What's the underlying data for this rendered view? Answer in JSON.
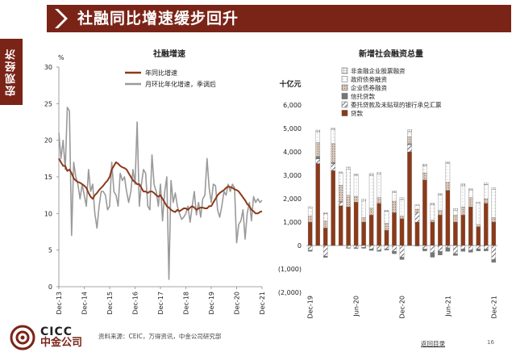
{
  "header": {
    "title": "社融同比增速缓步回升"
  },
  "side_tab": {
    "label": "宏观经济"
  },
  "colors": {
    "brand": "#7a2418",
    "series_growth": "#8b3a1a",
    "series_mom": "#9a9a9a"
  },
  "chart_data": [
    {
      "type": "line",
      "title": "社融增速",
      "ylabel": "%",
      "ylim": [
        0,
        30
      ],
      "yticks": [
        "0",
        "5",
        "10",
        "15",
        "20",
        "25",
        "30"
      ],
      "xticks": [
        "Dec-13",
        "Dec-14",
        "Dec-15",
        "Dec-16",
        "Dec-17",
        "Dec-18",
        "Dec-19",
        "Dec-20",
        "Dec-21"
      ],
      "x_index_range": [
        0,
        96
      ],
      "series": [
        {
          "name": "年同比增速",
          "color": "#8b3a1a",
          "values": [
            17.5,
            17,
            16.5,
            16.5,
            15.8,
            16,
            15.5,
            14.8,
            14.5,
            14.3,
            14.2,
            14,
            13.8,
            13.5,
            12.8,
            12.3,
            12,
            12.5,
            12.8,
            13.2,
            13.5,
            13.8,
            14.2,
            14.5,
            15,
            16,
            16.5,
            17,
            16.8,
            16.5,
            16.3,
            16.2,
            16,
            15.5,
            15,
            14.5,
            14.3,
            14,
            14,
            13.5,
            13,
            13,
            12.8,
            13,
            13,
            12.8,
            12.5,
            12.3,
            12.5,
            12,
            11.5,
            11,
            10.8,
            10.5,
            10.3,
            10.2,
            10.5,
            10.3,
            10.5,
            10.7,
            10.7,
            10.5,
            10.8,
            11,
            10.8,
            10.5,
            10.7,
            10.8,
            10.8,
            10.7,
            10.7,
            11,
            11,
            11.5,
            12,
            12.5,
            12.8,
            13,
            13.2,
            13.5,
            13.7,
            13.6,
            13.5,
            13.3,
            13.2,
            13,
            12.6,
            12.2,
            11.8,
            11.3,
            11,
            10.5,
            10.3,
            10,
            10,
            10.2,
            10.3
          ]
        },
        {
          "name": "月环比年化增速，季调后",
          "color": "#9a9a9a",
          "values": [
            21,
            17.5,
            20,
            16,
            24.5,
            24,
            7,
            17,
            15,
            14,
            12,
            14,
            12.5,
            11,
            16,
            13,
            14,
            10,
            8,
            11,
            13,
            13,
            12.5,
            10.5,
            11,
            17,
            13,
            12.5,
            11,
            15.5,
            14.5,
            15,
            13,
            11.5,
            13,
            16,
            14,
            22.5,
            11,
            14,
            16,
            15.5,
            11,
            10.5,
            18,
            14,
            13,
            11,
            14,
            9,
            13,
            15,
            1,
            14.5,
            11.5,
            12.8,
            11,
            10,
            9.2,
            9.5,
            10,
            11,
            8.8,
            11,
            13,
            9.8,
            11.5,
            9.5,
            12,
            12.5,
            17.5,
            13.5,
            11.5,
            14,
            13.8,
            10.5,
            9.5,
            11,
            13,
            12.5,
            14,
            13,
            14,
            13.5,
            6,
            8.5,
            9,
            10.5,
            6.5,
            10,
            11.5,
            9,
            12.3,
            11.5,
            12,
            11.5,
            11.8
          ]
        }
      ]
    },
    {
      "type": "bar",
      "stacked": true,
      "title": "新增社会融资总量",
      "ylabel": "十亿元",
      "ylim": [
        -2000,
        6000
      ],
      "yticks": [
        "(2,000)",
        "(1,000)",
        "0",
        "1,000",
        "2,000",
        "3,000",
        "4,000",
        "5,000",
        "6,000"
      ],
      "xticks": [
        "Dec-19",
        "Jun-20",
        "Dec-20",
        "Jun-21",
        "Dec-21"
      ],
      "categories": [
        "Dec-19",
        "Jan-20",
        "Feb-20",
        "Mar-20",
        "Apr-20",
        "May-20",
        "Jun-20",
        "Jul-20",
        "Aug-20",
        "Sep-20",
        "Oct-20",
        "Nov-20",
        "Dec-20",
        "Jan-21",
        "Feb-21",
        "Mar-21",
        "Apr-21",
        "May-21",
        "Jun-21",
        "Jul-21",
        "Aug-21",
        "Sep-21",
        "Oct-21",
        "Nov-21",
        "Dec-21"
      ],
      "series": [
        {
          "name": "贷款",
          "color": "#8b3a1a",
          "pattern": "solid",
          "values": [
            1000,
            3500,
            750,
            3200,
            1700,
            1650,
            1850,
            1000,
            1300,
            1800,
            650,
            1400,
            1150,
            4000,
            1000,
            2800,
            1000,
            1300,
            2350,
            1000,
            1300,
            1650,
            800,
            1800,
            1000
          ]
        },
        {
          "name": "委托贷款及未贴现的银行承兑汇票",
          "color": "#666666",
          "pattern": "hatch",
          "values": [
            -200,
            200,
            -450,
            300,
            150,
            -100,
            -100,
            -80,
            -150,
            -200,
            -150,
            -250,
            -500,
            300,
            400,
            -150,
            -300,
            -250,
            -100,
            -350,
            -150,
            -200,
            -150,
            -150,
            -600
          ]
        },
        {
          "name": "信托贷款",
          "color": "#777777",
          "pattern": "solid",
          "values": [
            -50,
            100,
            -60,
            50,
            30,
            -20,
            -30,
            -40,
            -60,
            -50,
            -40,
            -100,
            -100,
            50,
            -30,
            -80,
            -200,
            -150,
            -150,
            -80,
            -100,
            -90,
            -80,
            -80,
            -120
          ]
        },
        {
          "name": "企业债券融资",
          "color": "#c9b7a7",
          "pattern": "dots",
          "values": [
            250,
            600,
            300,
            800,
            700,
            500,
            250,
            200,
            300,
            250,
            300,
            500,
            100,
            300,
            150,
            300,
            100,
            200,
            350,
            300,
            350,
            400,
            100,
            200,
            200
          ]
        },
        {
          "name": "政府债券融资",
          "color": "#ffffff",
          "pattern": "sparse",
          "values": [
            350,
            450,
            300,
            600,
            500,
            1100,
            900,
            700,
            1400,
            1000,
            500,
            350,
            700,
            200,
            150,
            300,
            650,
            650,
            800,
            200,
            900,
            300,
            900,
            600,
            1200
          ]
        },
        {
          "name": "非金融企业股票融资",
          "color": "#ffffff",
          "pattern": "grid",
          "values": [
            60,
            80,
            60,
            60,
            60,
            100,
            60,
            80,
            80,
            70,
            60,
            80,
            100,
            100,
            60,
            80,
            60,
            70,
            80,
            80,
            80,
            70,
            60,
            70,
            70
          ]
        }
      ]
    }
  ],
  "footer": {
    "logo_en": "CICC",
    "logo_cn": "中金公司",
    "source": "资料来源：CEIC，万得资讯，中金公司研究部",
    "back_link": "返回目录",
    "page_number": "16"
  }
}
